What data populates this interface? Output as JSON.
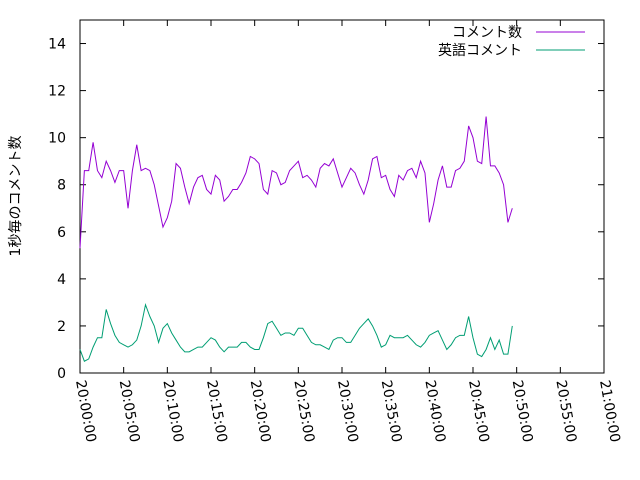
{
  "chart_data": {
    "type": "line",
    "title": "",
    "xlabel": "",
    "ylabel": "1秒毎のコメント数",
    "ylim": [
      0,
      15
    ],
    "yticks": [
      0,
      2,
      4,
      6,
      8,
      10,
      12,
      14
    ],
    "xlim_minutes": [
      0,
      60
    ],
    "xtick_minutes": [
      0,
      5,
      10,
      15,
      20,
      25,
      30,
      35,
      40,
      45,
      50,
      55,
      60
    ],
    "xtick_labels": [
      "20:00:00",
      "20:05:00",
      "20:10:00",
      "20:15:00",
      "20:20:00",
      "20:25:00",
      "20:30:00",
      "20:35:00",
      "20:40:00",
      "20:45:00",
      "20:50:00",
      "20:55:00",
      "21:00:00"
    ],
    "grid": false,
    "legend_position": "top-right",
    "x_step_seconds": 30,
    "series": [
      {
        "name": "コメント数",
        "color": "#9400d3",
        "values": [
          5.3,
          8.6,
          8.6,
          9.8,
          8.6,
          8.3,
          9.0,
          8.6,
          8.1,
          8.6,
          8.6,
          7.0,
          8.6,
          9.7,
          8.6,
          8.7,
          8.6,
          8.0,
          7.1,
          6.2,
          6.6,
          7.3,
          8.9,
          8.7,
          7.9,
          7.2,
          7.9,
          8.3,
          8.4,
          7.8,
          7.6,
          8.4,
          8.2,
          7.3,
          7.5,
          7.8,
          7.8,
          8.1,
          8.5,
          9.2,
          9.1,
          8.9,
          7.8,
          7.6,
          8.6,
          8.5,
          8.0,
          8.1,
          8.6,
          8.8,
          9.0,
          8.3,
          8.4,
          8.2,
          7.9,
          8.7,
          8.9,
          8.8,
          9.1,
          8.5,
          7.9,
          8.3,
          8.7,
          8.5,
          8.0,
          7.6,
          8.2,
          9.1,
          9.2,
          8.3,
          8.4,
          7.8,
          7.5,
          8.4,
          8.2,
          8.6,
          8.7,
          8.3,
          9.0,
          8.5,
          6.4,
          7.2,
          8.2,
          8.8,
          7.9,
          7.9,
          8.6,
          8.7,
          9.0,
          10.5,
          10.0,
          9.0,
          8.9,
          10.9,
          8.8,
          8.8,
          8.5,
          8.0,
          6.4,
          7.0
        ]
      },
      {
        "name": "英語コメント",
        "color": "#009e73",
        "values": [
          1.0,
          0.5,
          0.6,
          1.1,
          1.5,
          1.5,
          2.7,
          2.1,
          1.6,
          1.3,
          1.2,
          1.1,
          1.2,
          1.4,
          2.0,
          2.9,
          2.4,
          2.0,
          1.3,
          1.9,
          2.1,
          1.7,
          1.4,
          1.1,
          0.9,
          0.9,
          1.0,
          1.1,
          1.1,
          1.3,
          1.5,
          1.4,
          1.1,
          0.9,
          1.1,
          1.1,
          1.1,
          1.3,
          1.3,
          1.1,
          1.0,
          1.0,
          1.5,
          2.1,
          2.2,
          1.9,
          1.6,
          1.7,
          1.7,
          1.6,
          1.9,
          1.9,
          1.6,
          1.3,
          1.2,
          1.2,
          1.1,
          1.0,
          1.4,
          1.5,
          1.5,
          1.3,
          1.3,
          1.6,
          1.9,
          2.1,
          2.3,
          2.0,
          1.6,
          1.1,
          1.2,
          1.6,
          1.5,
          1.5,
          1.5,
          1.6,
          1.4,
          1.2,
          1.1,
          1.3,
          1.6,
          1.7,
          1.8,
          1.4,
          1.0,
          1.2,
          1.5,
          1.6,
          1.6,
          2.4,
          1.5,
          0.8,
          0.7,
          1.0,
          1.5,
          1.0,
          1.4,
          0.8,
          0.8,
          2.0
        ]
      }
    ]
  }
}
